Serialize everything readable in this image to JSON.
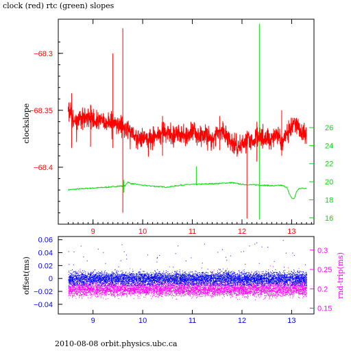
{
  "header": {
    "title": "clock (red) rtc (green) slopes"
  },
  "footer": {
    "text": "2010-08-08  orbit.physics.ubc.ca"
  },
  "colors": {
    "clock": "#ff0000",
    "rtc": "#00dd00",
    "offset": "#0000ff",
    "roundtrip": "#ff00ff",
    "axis": "#000000"
  },
  "chart_data": [
    {
      "type": "line",
      "title": "clock (red) rtc (green) slopes",
      "xlabel": "",
      "ylabel": "clockslope",
      "xlim": [
        8.3,
        13.45
      ],
      "ylim": [
        -68.45,
        -68.27
      ],
      "y2lim": [
        15.3,
        38.0
      ],
      "x_ticks": [
        "9",
        "10",
        "11",
        "12",
        "13"
      ],
      "y_ticks": [
        "-68.3",
        "-68.35",
        "-68.4"
      ],
      "y2_ticks": [
        "16",
        "18",
        "20",
        "22",
        "24",
        "26"
      ],
      "grid": false,
      "series": [
        {
          "name": "clock",
          "axis": "left",
          "x": [
            8.5,
            8.55,
            8.62,
            8.7,
            8.8,
            8.9,
            9.0,
            9.1,
            9.2,
            9.3,
            9.4,
            9.5,
            9.6,
            9.65,
            9.7,
            9.8,
            9.9,
            10.0,
            10.1,
            10.2,
            10.3,
            10.4,
            10.5,
            10.6,
            10.7,
            10.8,
            10.9,
            11.0,
            11.1,
            11.2,
            11.3,
            11.4,
            11.5,
            11.6,
            11.7,
            11.8,
            11.9,
            12.0,
            12.1,
            12.2,
            12.3,
            12.4,
            12.5,
            12.6,
            12.7,
            12.8,
            12.9,
            13.0,
            13.05,
            13.1,
            13.2,
            13.3
          ],
          "y": [
            -68.355,
            -68.353,
            -68.36,
            -68.358,
            -68.357,
            -68.356,
            -68.359,
            -68.36,
            -68.36,
            -68.361,
            -68.362,
            -68.361,
            -68.363,
            -68.368,
            -68.366,
            -68.371,
            -68.375,
            -68.374,
            -68.376,
            -68.374,
            -68.373,
            -68.37,
            -68.369,
            -68.372,
            -68.37,
            -68.371,
            -68.373,
            -68.369,
            -68.372,
            -68.374,
            -68.373,
            -68.376,
            -68.37,
            -68.368,
            -68.372,
            -68.378,
            -68.38,
            -68.381,
            -68.376,
            -68.377,
            -68.374,
            -68.375,
            -68.374,
            -68.375,
            -68.371,
            -68.378,
            -68.37,
            -68.363,
            -68.359,
            -68.362,
            -68.368,
            -68.373
          ],
          "spikes": [
            {
              "x": 8.57,
              "low": -68.383,
              "high": -68.335
            },
            {
              "x": 8.95,
              "low": -68.382,
              "high": -68.345
            },
            {
              "x": 9.4,
              "low": -68.383,
              "high": -68.3
            },
            {
              "x": 9.6,
              "low": -68.44,
              "high": -68.278
            },
            {
              "x": 10.4,
              "low": -68.39,
              "high": -68.355
            },
            {
              "x": 11.55,
              "low": -68.385,
              "high": -68.355
            },
            {
              "x": 12.1,
              "low": -68.445,
              "high": -68.368
            },
            {
              "x": 12.3,
              "low": -68.395,
              "high": -68.36
            },
            {
              "x": 12.8,
              "low": -68.39,
              "high": -68.35
            }
          ]
        },
        {
          "name": "rtc",
          "axis": "right",
          "x": [
            8.5,
            8.7,
            9.0,
            9.3,
            9.5,
            9.65,
            9.7,
            9.75,
            9.9,
            10.0,
            10.5,
            10.8,
            11.0,
            11.5,
            11.8,
            12.0,
            12.5,
            12.6,
            12.8,
            12.9,
            12.95,
            13.0,
            13.05,
            13.1,
            13.15,
            13.3
          ],
          "y": [
            19.1,
            19.2,
            19.3,
            19.4,
            19.5,
            19.55,
            20.0,
            19.8,
            19.7,
            19.6,
            19.4,
            19.65,
            19.7,
            19.8,
            19.9,
            19.7,
            19.6,
            19.55,
            19.6,
            19.4,
            18.7,
            18.2,
            18.1,
            18.9,
            19.25,
            19.3
          ],
          "spikes": [
            {
              "x": 9.62,
              "low": 18.8,
              "high": 20.2
            },
            {
              "x": 11.08,
              "low": 19.6,
              "high": 21.7
            },
            {
              "x": 12.35,
              "low": 15.8,
              "high": 37.5
            }
          ]
        }
      ]
    },
    {
      "type": "scatter",
      "title": "",
      "xlabel": "",
      "ylabel": "offset(ms)",
      "y2label": "rnd-trip(ms)",
      "xlim": [
        8.3,
        13.45
      ],
      "ylim": [
        -0.055,
        0.065
      ],
      "y2lim": [
        0.135,
        0.335
      ],
      "x_ticks": [
        "9",
        "10",
        "11",
        "12",
        "13"
      ],
      "y_ticks": [
        "0.06",
        "0.04",
        "0.02",
        "0",
        "-0.02",
        "-0.04"
      ],
      "y2_ticks": [
        "0.3",
        "0.25",
        "0.2",
        "0.15"
      ],
      "grid": false,
      "series": [
        {
          "name": "offset",
          "axis": "left",
          "x_range": [
            8.5,
            13.3
          ],
          "y_center": 0.0,
          "y_spread": 0.01,
          "y_min": -0.01,
          "y_max": 0.06
        },
        {
          "name": "rnd-trip",
          "axis": "right",
          "x_range": [
            8.5,
            13.3
          ],
          "y_center": 0.2,
          "y_spread": 0.018,
          "y_min": 0.155,
          "y_max": 0.26
        }
      ]
    }
  ]
}
